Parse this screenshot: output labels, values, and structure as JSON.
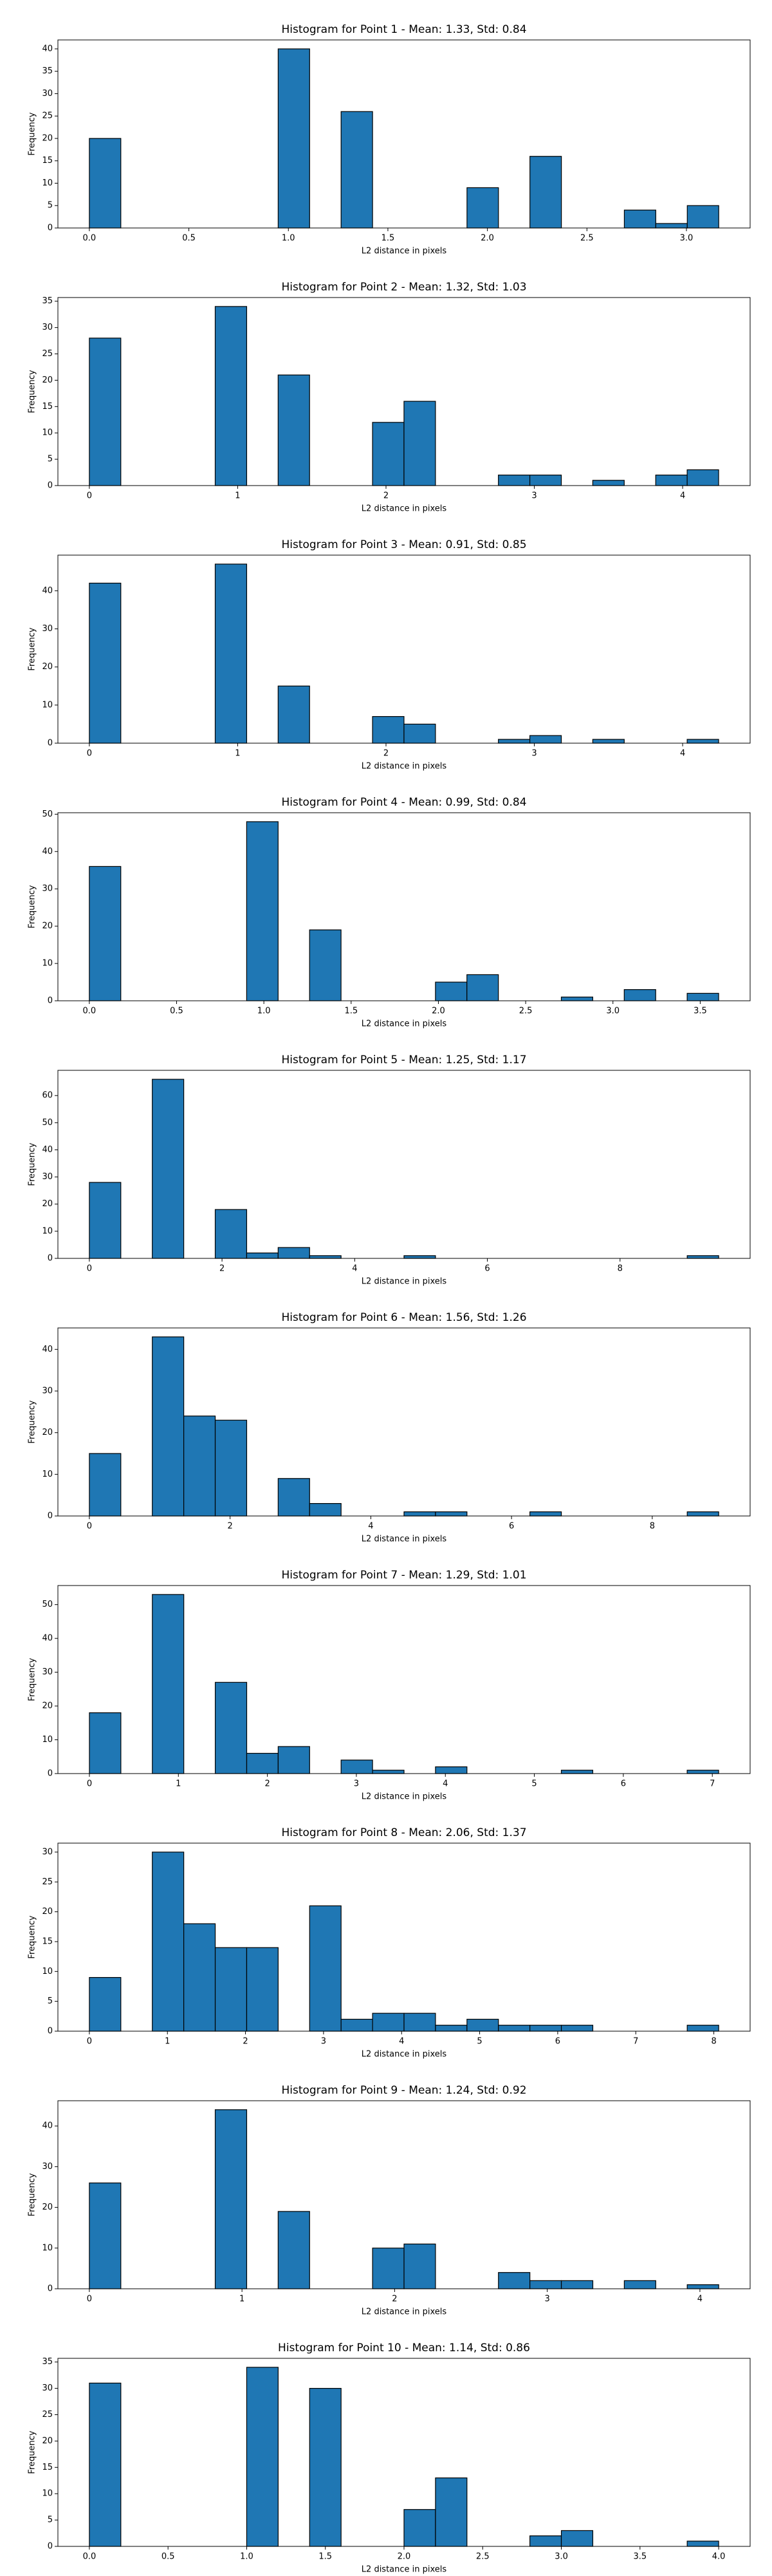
{
  "chart_data": [
    {
      "type": "histogram",
      "title": "Histogram for Point 1 - Mean: 1.33, Std: 0.84",
      "x_label": "L2 distance in pixels",
      "y_label": "Frequency",
      "color": "#1f77b4",
      "edgecolor": "#000000",
      "grid": false,
      "bins": [
        0,
        0.1581,
        0.3162,
        0.4743,
        0.6325,
        0.7906,
        0.9487,
        1.1068,
        1.2649,
        1.423,
        1.5811,
        1.7393,
        1.8974,
        2.0555,
        2.2136,
        2.3717,
        2.5298,
        2.6879,
        2.846,
        3.0042,
        3.1623
      ],
      "values": [
        20,
        0,
        0,
        0,
        0,
        0,
        40,
        0,
        26,
        0,
        0,
        0,
        9,
        0,
        16,
        0,
        0,
        4,
        1,
        5
      ],
      "xlim": [
        -0.158,
        3.32
      ],
      "xticks": [
        {
          "value": 0,
          "label": "0.0"
        },
        0.5,
        {
          "value": 1,
          "label": "1.0"
        },
        1.5,
        {
          "value": 2,
          "label": "2.0"
        },
        2.5,
        {
          "value": 3,
          "label": "3.0"
        }
      ],
      "ylim": [
        0,
        42
      ],
      "yticks": [
        0,
        5,
        10,
        15,
        20,
        25,
        30,
        35,
        40
      ]
    },
    {
      "type": "histogram",
      "title": "Histogram for Point 2 - Mean: 1.32, Std: 1.03",
      "x_label": "L2 distance in pixels",
      "y_label": "Frequency",
      "color": "#1f77b4",
      "edgecolor": "#000000",
      "grid": false,
      "bins": [
        0,
        0.2121,
        0.4243,
        0.6364,
        0.8485,
        1.0607,
        1.2728,
        1.4849,
        1.6971,
        1.9092,
        2.1213,
        2.3335,
        2.5456,
        2.7577,
        2.9698,
        3.182,
        3.3941,
        3.6062,
        3.8184,
        4.0305,
        4.2426
      ],
      "values": [
        28,
        0,
        0,
        0,
        34,
        0,
        21,
        0,
        0,
        12,
        16,
        0,
        0,
        2,
        2,
        0,
        1,
        0,
        2,
        3
      ],
      "xlim": [
        -0.212,
        4.455
      ],
      "xticks": [
        0,
        1,
        2,
        3,
        4
      ],
      "ylim": [
        0,
        35.7
      ],
      "yticks": [
        0,
        5,
        10,
        15,
        20,
        25,
        30,
        35
      ]
    },
    {
      "type": "histogram",
      "title": "Histogram for Point 3 - Mean: 0.91, Std: 0.85",
      "x_label": "L2 distance in pixels",
      "y_label": "Frequency",
      "color": "#1f77b4",
      "edgecolor": "#000000",
      "grid": false,
      "bins": [
        0,
        0.2121,
        0.4243,
        0.6364,
        0.8485,
        1.0607,
        1.2728,
        1.4849,
        1.6971,
        1.9092,
        2.1213,
        2.3335,
        2.5456,
        2.7577,
        2.9698,
        3.182,
        3.3941,
        3.6062,
        3.8184,
        4.0305,
        4.2426
      ],
      "values": [
        42,
        0,
        0,
        0,
        47,
        0,
        15,
        0,
        0,
        7,
        5,
        0,
        0,
        1,
        2,
        0,
        1,
        0,
        0,
        1
      ],
      "xlim": [
        -0.212,
        4.455
      ],
      "xticks": [
        0,
        1,
        2,
        3,
        4
      ],
      "ylim": [
        0,
        49.35
      ],
      "yticks": [
        0,
        10,
        20,
        30,
        40
      ]
    },
    {
      "type": "histogram",
      "title": "Histogram for Point 4 - Mean: 0.99, Std: 0.84",
      "x_label": "L2 distance in pixels",
      "y_label": "Frequency",
      "color": "#1f77b4",
      "edgecolor": "#000000",
      "grid": false,
      "bins": [
        0,
        0.1803,
        0.3606,
        0.5408,
        0.7211,
        0.9014,
        1.0817,
        1.2619,
        1.4422,
        1.6225,
        1.8028,
        1.9831,
        2.1633,
        2.3436,
        2.5239,
        2.7042,
        2.8844,
        3.0647,
        3.245,
        3.4253,
        3.6056
      ],
      "values": [
        36,
        0,
        0,
        0,
        0,
        48,
        0,
        19,
        0,
        0,
        0,
        5,
        7,
        0,
        0,
        1,
        0,
        3,
        0,
        2
      ],
      "xlim": [
        -0.18,
        3.786
      ],
      "xticks": [
        {
          "value": 0,
          "label": "0.0"
        },
        0.5,
        {
          "value": 1,
          "label": "1.0"
        },
        1.5,
        {
          "value": 2,
          "label": "2.0"
        },
        2.5,
        {
          "value": 3,
          "label": "3.0"
        },
        3.5
      ],
      "ylim": [
        0,
        50.4
      ],
      "yticks": [
        0,
        10,
        20,
        30,
        40,
        50
      ]
    },
    {
      "type": "histogram",
      "title": "Histogram for Point 5 - Mean: 1.25, Std: 1.17",
      "x_label": "L2 distance in pixels",
      "y_label": "Frequency",
      "color": "#1f77b4",
      "edgecolor": "#000000",
      "grid": false,
      "bins": [
        0,
        0.4743,
        0.9487,
        1.423,
        1.8974,
        2.3717,
        2.846,
        3.3204,
        3.7947,
        4.2691,
        4.7434,
        5.2178,
        5.6921,
        6.1664,
        6.6408,
        7.1151,
        7.5895,
        8.0638,
        8.5381,
        9.0125,
        9.4868
      ],
      "values": [
        28,
        0,
        66,
        0,
        18,
        2,
        4,
        1,
        0,
        0,
        1,
        0,
        0,
        0,
        0,
        0,
        0,
        0,
        0,
        1
      ],
      "xlim": [
        -0.474,
        9.961
      ],
      "xticks": [
        0,
        2,
        4,
        6,
        8
      ],
      "ylim": [
        0,
        69.3
      ],
      "yticks": [
        0,
        10,
        20,
        30,
        40,
        50,
        60
      ]
    },
    {
      "type": "histogram",
      "title": "Histogram for Point 6 - Mean: 1.56, Std: 1.26",
      "x_label": "L2 distance in pixels",
      "y_label": "Frequency",
      "color": "#1f77b4",
      "edgecolor": "#000000",
      "grid": false,
      "bins": [
        0,
        0.4472,
        0.8944,
        1.3416,
        1.7889,
        2.2361,
        2.6833,
        3.1305,
        3.5777,
        4.0249,
        4.4721,
        4.9193,
        5.3666,
        5.8138,
        6.261,
        6.7082,
        7.1554,
        7.6026,
        8.0498,
        8.4971,
        8.9443
      ],
      "values": [
        15,
        0,
        43,
        24,
        23,
        0,
        9,
        3,
        0,
        0,
        1,
        1,
        0,
        0,
        1,
        0,
        0,
        0,
        0,
        1
      ],
      "xlim": [
        -0.447,
        9.391
      ],
      "xticks": [
        0,
        2,
        4,
        6,
        8
      ],
      "ylim": [
        0,
        45.15
      ],
      "yticks": [
        0,
        10,
        20,
        30,
        40
      ]
    },
    {
      "type": "histogram",
      "title": "Histogram for Point 7 - Mean: 1.29, Std: 1.01",
      "x_label": "L2 distance in pixels",
      "y_label": "Frequency",
      "color": "#1f77b4",
      "edgecolor": "#000000",
      "grid": false,
      "bins": [
        0,
        0.3536,
        0.7071,
        1.0607,
        1.4142,
        1.7678,
        2.1213,
        2.4749,
        2.8284,
        3.182,
        3.5355,
        3.8891,
        4.2426,
        4.5962,
        4.9497,
        5.3033,
        5.6569,
        6.0104,
        6.364,
        6.7175,
        7.0711
      ],
      "values": [
        18,
        0,
        53,
        0,
        27,
        6,
        8,
        0,
        4,
        1,
        0,
        2,
        0,
        0,
        0,
        1,
        0,
        0,
        0,
        1
      ],
      "xlim": [
        -0.354,
        7.425
      ],
      "xticks": [
        0,
        1,
        2,
        3,
        4,
        5,
        6,
        7
      ],
      "ylim": [
        0,
        55.65
      ],
      "yticks": [
        0,
        10,
        20,
        30,
        40,
        50
      ]
    },
    {
      "type": "histogram",
      "title": "Histogram for Point 8 - Mean: 2.06, Std: 1.37",
      "x_label": "L2 distance in pixels",
      "y_label": "Frequency",
      "color": "#1f77b4",
      "edgecolor": "#000000",
      "grid": false,
      "bins": [
        0,
        0.4031,
        0.8062,
        1.2093,
        1.6125,
        2.0156,
        2.4187,
        2.8218,
        3.2249,
        3.628,
        4.0311,
        4.4342,
        4.8374,
        5.2405,
        5.6436,
        6.0467,
        6.4498,
        6.8529,
        7.256,
        7.6591,
        8.0623
      ],
      "values": [
        9,
        0,
        30,
        18,
        14,
        14,
        0,
        21,
        2,
        3,
        3,
        1,
        2,
        1,
        1,
        1,
        0,
        0,
        0,
        1
      ],
      "xlim": [
        -0.403,
        8.465
      ],
      "xticks": [
        0,
        1,
        2,
        3,
        4,
        5,
        6,
        7,
        8
      ],
      "ylim": [
        0,
        31.5
      ],
      "yticks": [
        0,
        5,
        10,
        15,
        20,
        25,
        30
      ]
    },
    {
      "type": "histogram",
      "title": "Histogram for Point 9 - Mean: 1.24, Std: 0.92",
      "x_label": "L2 distance in pixels",
      "y_label": "Frequency",
      "color": "#1f77b4",
      "edgecolor": "#000000",
      "grid": false,
      "bins": [
        0,
        0.2062,
        0.4123,
        0.6185,
        0.8246,
        1.0308,
        1.2369,
        1.4431,
        1.6492,
        1.8554,
        2.0616,
        2.2677,
        2.4739,
        2.68,
        2.8862,
        3.0923,
        3.2985,
        3.5046,
        3.7108,
        3.9169,
        4.1231
      ],
      "values": [
        26,
        0,
        0,
        0,
        44,
        0,
        19,
        0,
        0,
        10,
        11,
        0,
        0,
        4,
        2,
        2,
        0,
        2,
        0,
        1
      ],
      "xlim": [
        -0.206,
        4.329
      ],
      "xticks": [
        0,
        1,
        2,
        3,
        4
      ],
      "ylim": [
        0,
        46.2
      ],
      "yticks": [
        0,
        10,
        20,
        30,
        40
      ]
    },
    {
      "type": "histogram",
      "title": "Histogram for Point 10 - Mean: 1.14, Std: 0.86",
      "x_label": "L2 distance in pixels",
      "y_label": "Frequency",
      "color": "#1f77b4",
      "edgecolor": "#000000",
      "grid": false,
      "bins": [
        0,
        0.2,
        0.4,
        0.6,
        0.8,
        1.0,
        1.2,
        1.4,
        1.6,
        1.8,
        2.0,
        2.2,
        2.4,
        2.6,
        2.8,
        3.0,
        3.2,
        3.4,
        3.6,
        3.8,
        4.0
      ],
      "values": [
        31,
        0,
        0,
        0,
        0,
        34,
        0,
        30,
        0,
        0,
        7,
        13,
        0,
        0,
        2,
        3,
        0,
        0,
        0,
        1
      ],
      "xlim": [
        -0.2,
        4.2
      ],
      "xticks": [
        {
          "value": 0,
          "label": "0.0"
        },
        0.5,
        {
          "value": 1,
          "label": "1.0"
        },
        1.5,
        {
          "value": 2,
          "label": "2.0"
        },
        2.5,
        {
          "value": 3,
          "label": "3.0"
        },
        3.5,
        {
          "value": 4,
          "label": "4.0"
        }
      ],
      "ylim": [
        0,
        35.7
      ],
      "yticks": [
        0,
        5,
        10,
        15,
        20,
        25,
        30,
        35
      ]
    }
  ]
}
